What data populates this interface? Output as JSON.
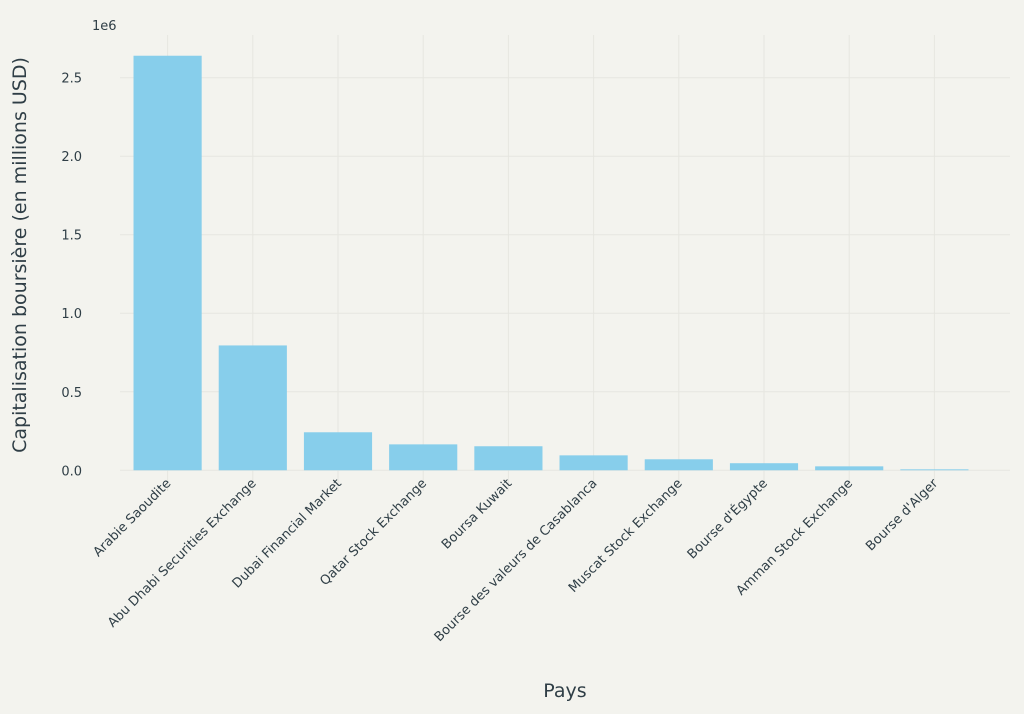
{
  "chart_data": {
    "type": "bar",
    "x_label": "Pays",
    "y_label": "Capitalisation boursière (en millions USD)",
    "axis_offset_label": "1e6",
    "categories": [
      "Arabie Saoudite",
      "Abu Dhabi Securities Exchange",
      "Dubai Financial Market",
      "Qatar Stock Exchange",
      "Boursa Kuwait",
      "Bourse des valeurs de Casablanca",
      "Muscat Stock Exchange",
      "Bourse d'Égypte",
      "Amman Stock Exchange",
      "Bourse d'Alger"
    ],
    "values": [
      2640000,
      795000,
      242000,
      165000,
      153000,
      95000,
      70000,
      45000,
      25000,
      6000
    ],
    "color": "#87ceeb",
    "ylim": [
      -132000,
      2772000
    ],
    "yticks": [
      {
        "value": 0,
        "label": "0.0"
      },
      {
        "value": 500000,
        "label": "0.5"
      },
      {
        "value": 1000000,
        "label": "1.0"
      },
      {
        "value": 1500000,
        "label": "1.5"
      },
      {
        "value": 2000000,
        "label": "2.0"
      },
      {
        "value": 2500000,
        "label": "2.5"
      }
    ],
    "grid": true
  }
}
